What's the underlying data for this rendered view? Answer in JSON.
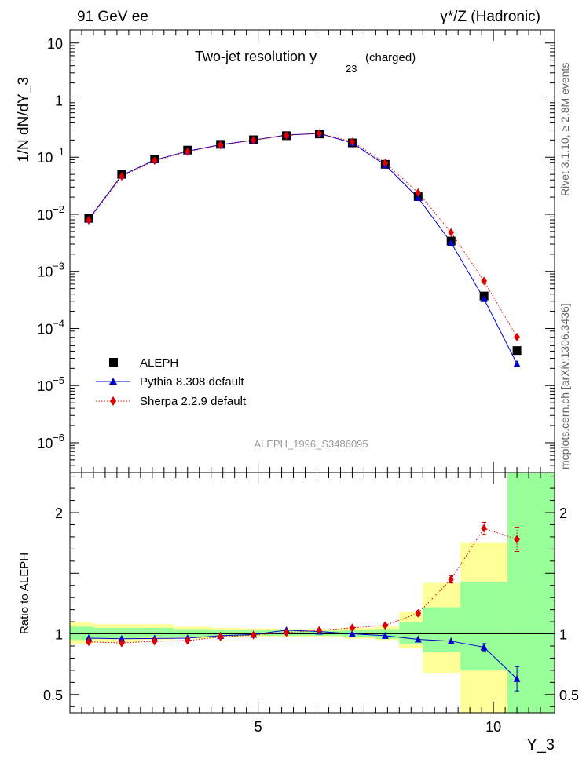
{
  "header": {
    "left": "91 GeV ee",
    "right": "γ*/Z (Hadronic)"
  },
  "side_labels": {
    "rivet": "Rivet 3.1.10, ≥ 2.8M events",
    "mcplots": "mcplots.cern.ch [arXiv:1306.3436]"
  },
  "chart_data": [
    {
      "type": "scatter",
      "panel": "main",
      "title_main": "Two-jet resolution y",
      "title_sub": "23",
      "title_extra": "(charged)",
      "ylabel": "1/N dN/dY_3",
      "yscale": "log",
      "ylim": [
        3e-07,
        17
      ],
      "xlim": [
        1,
        11.3
      ],
      "yticks": [
        {
          "v": 1e-06,
          "base": "10",
          "exp": "−6"
        },
        {
          "v": 1e-05,
          "base": "10",
          "exp": "−5"
        },
        {
          "v": 0.0001,
          "base": "10",
          "exp": "−4"
        },
        {
          "v": 0.001,
          "base": "10",
          "exp": "−3"
        },
        {
          "v": 0.01,
          "base": "10",
          "exp": "−2"
        },
        {
          "v": 0.1,
          "base": "10",
          "exp": "−1"
        },
        {
          "v": 1,
          "base": "1",
          "exp": ""
        },
        {
          "v": 10,
          "base": "10",
          "exp": ""
        }
      ],
      "analysis_label": "ALEPH_1996_S3486095",
      "legend_placement": "lower-left",
      "x": [
        1.4,
        2.1,
        2.8,
        3.5,
        4.2,
        4.9,
        5.6,
        6.3,
        7.0,
        7.7,
        8.4,
        9.1,
        9.8,
        10.5
      ],
      "series": [
        {
          "name": "ALEPH",
          "marker": "square",
          "color": "#000000",
          "values": [
            0.0085,
            0.05,
            0.093,
            0.133,
            0.168,
            0.202,
            0.238,
            0.255,
            0.178,
            0.075,
            0.0205,
            0.0034,
            0.00037,
            4.1e-05
          ]
        },
        {
          "name": "Pythia 8.308 default",
          "marker": "triangle",
          "color": "#0000cc",
          "line": "solid",
          "values": [
            0.0082,
            0.048,
            0.089,
            0.128,
            0.165,
            0.2,
            0.245,
            0.26,
            0.178,
            0.073,
            0.0195,
            0.0032,
            0.00033,
            2.4e-05
          ]
        },
        {
          "name": "Sherpa 2.2.9 default",
          "marker": "diamond",
          "color": "#dd0000",
          "line": "dotted",
          "values": [
            0.0079,
            0.046,
            0.087,
            0.125,
            0.163,
            0.198,
            0.24,
            0.262,
            0.186,
            0.079,
            0.024,
            0.0048,
            0.00068,
            7.1e-05
          ]
        }
      ]
    },
    {
      "type": "scatter",
      "panel": "ratio",
      "ylabel": "Ratio to ALEPH",
      "xlabel": "Y_3",
      "ylim": [
        0.35,
        2.33
      ],
      "xlim": [
        1,
        11.3
      ],
      "yticks": [
        "0.5",
        "1",
        "2"
      ],
      "xticks": [
        "5",
        "10"
      ],
      "reference_line": 1,
      "x": [
        1.4,
        2.1,
        2.8,
        3.5,
        4.2,
        4.9,
        5.6,
        6.3,
        7.0,
        7.7,
        8.4,
        9.1,
        9.8,
        10.5
      ],
      "series": [
        {
          "name": "Pythia 8.308 default",
          "color": "#0000cc",
          "values": [
            0.965,
            0.96,
            0.962,
            0.965,
            0.985,
            0.995,
            1.03,
            1.02,
            1.0,
            0.985,
            0.955,
            0.94,
            0.89,
            0.63
          ],
          "errors": [
            0.01,
            0.01,
            0.01,
            0.01,
            0.01,
            0.01,
            0.01,
            0.01,
            0.01,
            0.01,
            0.01,
            0.01,
            0.03,
            0.1
          ]
        },
        {
          "name": "Sherpa 2.2.9 default",
          "color": "#dd0000",
          "values": [
            0.935,
            0.925,
            0.94,
            0.945,
            0.975,
            0.99,
            1.01,
            1.03,
            1.05,
            1.07,
            1.17,
            1.45,
            1.87,
            1.78
          ],
          "errors": [
            0.01,
            0.01,
            0.01,
            0.01,
            0.01,
            0.01,
            0.01,
            0.01,
            0.01,
            0.01,
            0.02,
            0.03,
            0.05,
            0.1
          ]
        }
      ],
      "bands": {
        "green": "#99ff99",
        "yellow": "#ffff99",
        "bins": [
          {
            "x0": 1.0,
            "x1": 1.5,
            "g": [
              0.95,
              1.06
            ],
            "y": [
              0.92,
              1.1
            ]
          },
          {
            "x0": 1.5,
            "x1": 2.5,
            "g": [
              0.96,
              1.05
            ],
            "y": [
              0.93,
              1.08
            ]
          },
          {
            "x0": 2.5,
            "x1": 3.2,
            "g": [
              0.97,
              1.05
            ],
            "y": [
              0.95,
              1.08
            ]
          },
          {
            "x0": 3.2,
            "x1": 4.0,
            "g": [
              0.975,
              1.04
            ],
            "y": [
              0.96,
              1.06
            ]
          },
          {
            "x0": 4.0,
            "x1": 4.7,
            "g": [
              0.98,
              1.035
            ],
            "y": [
              0.97,
              1.05
            ]
          },
          {
            "x0": 4.7,
            "x1": 5.4,
            "g": [
              0.985,
              1.03
            ],
            "y": [
              0.975,
              1.045
            ]
          },
          {
            "x0": 5.4,
            "x1": 6.1,
            "g": [
              0.985,
              1.025
            ],
            "y": [
              0.975,
              1.04
            ]
          },
          {
            "x0": 6.1,
            "x1": 6.8,
            "g": [
              0.985,
              1.025
            ],
            "y": [
              0.975,
              1.04
            ]
          },
          {
            "x0": 6.8,
            "x1": 7.5,
            "g": [
              0.975,
              1.03
            ],
            "y": [
              0.96,
              1.05
            ]
          },
          {
            "x0": 7.5,
            "x1": 8.0,
            "g": [
              0.96,
              1.04
            ],
            "y": [
              0.95,
              1.06
            ]
          },
          {
            "x0": 8.0,
            "x1": 8.5,
            "g": [
              0.92,
              1.1
            ],
            "y": [
              0.88,
              1.18
            ]
          },
          {
            "x0": 8.5,
            "x1": 9.3,
            "g": [
              0.85,
              1.22
            ],
            "y": [
              0.68,
              1.42
            ]
          },
          {
            "x0": 9.3,
            "x1": 10.3,
            "g": [
              0.7,
              1.43
            ],
            "y": [
              0.35,
              1.75
            ]
          },
          {
            "x0": 10.3,
            "x1": 11.3,
            "g": [
              0.35,
              2.33
            ],
            "y": [
              0.35,
              2.33
            ]
          }
        ]
      }
    }
  ]
}
